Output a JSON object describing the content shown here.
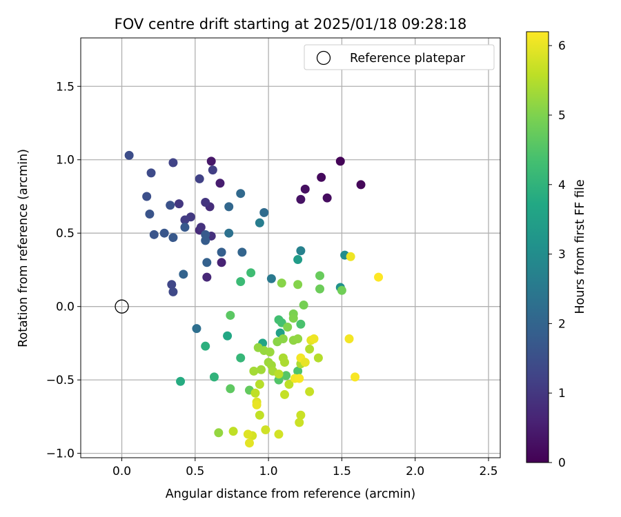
{
  "chart_data": {
    "type": "scatter",
    "title": "FOV centre drift starting at 2025/01/18 09:28:18",
    "xlabel": "Angular distance from reference (arcmin)",
    "ylabel": "Rotation from reference (arcmin)",
    "xlim": [
      -0.28,
      2.58
    ],
    "ylim": [
      -1.03,
      1.83
    ],
    "xticks": [
      0.0,
      0.5,
      1.0,
      1.5,
      2.0,
      2.5
    ],
    "yticks": [
      -1.0,
      -0.5,
      0.0,
      0.5,
      1.0,
      1.5
    ],
    "xtick_labels": [
      "0.0",
      "0.5",
      "1.0",
      "1.5",
      "2.0",
      "2.5"
    ],
    "ytick_labels": [
      "−1.0",
      "−0.5",
      "0.0",
      "0.5",
      "1.0",
      "1.5"
    ],
    "grid": true,
    "legend": {
      "placement": "top-right",
      "entries": [
        "Reference platepar"
      ]
    },
    "reference_point": {
      "x": 0.0,
      "y": 0.0,
      "marker": "open-circle"
    },
    "colorbar": {
      "label": "Hours from first FF file",
      "colormap": "viridis",
      "range": [
        0,
        6.2
      ],
      "ticks": [
        0,
        1,
        2,
        3,
        4,
        5,
        6
      ],
      "tick_labels": [
        "0",
        "1",
        "2",
        "3",
        "4",
        "5",
        "6"
      ]
    },
    "series": [
      {
        "color_by": "hours",
        "points": [
          {
            "x": 1.49,
            "y": 0.99,
            "c": 0.05
          },
          {
            "x": 1.63,
            "y": 0.83,
            "c": 0.1
          },
          {
            "x": 1.36,
            "y": 0.88,
            "c": 0.15
          },
          {
            "x": 1.4,
            "y": 0.74,
            "c": 0.2
          },
          {
            "x": 1.25,
            "y": 0.8,
            "c": 0.25
          },
          {
            "x": 1.22,
            "y": 0.73,
            "c": 0.3
          },
          {
            "x": 0.61,
            "y": 0.99,
            "c": 0.4
          },
          {
            "x": 0.67,
            "y": 0.84,
            "c": 0.5
          },
          {
            "x": 0.68,
            "y": 0.3,
            "c": 0.6
          },
          {
            "x": 0.58,
            "y": 0.2,
            "c": 0.7
          },
          {
            "x": 0.53,
            "y": 0.52,
            "c": 0.75
          },
          {
            "x": 0.6,
            "y": 0.68,
            "c": 0.8
          },
          {
            "x": 0.61,
            "y": 0.48,
            "c": 0.85
          },
          {
            "x": 0.54,
            "y": 0.54,
            "c": 0.9
          },
          {
            "x": 0.57,
            "y": 0.71,
            "c": 0.95
          },
          {
            "x": 0.39,
            "y": 0.7,
            "c": 1.0
          },
          {
            "x": 0.47,
            "y": 0.61,
            "c": 1.05
          },
          {
            "x": 0.43,
            "y": 0.59,
            "c": 1.1
          },
          {
            "x": 0.62,
            "y": 0.93,
            "c": 1.15
          },
          {
            "x": 0.53,
            "y": 0.87,
            "c": 1.2
          },
          {
            "x": 0.35,
            "y": 0.98,
            "c": 1.25
          },
          {
            "x": 0.34,
            "y": 0.15,
            "c": 1.3
          },
          {
            "x": 0.35,
            "y": 0.1,
            "c": 1.35
          },
          {
            "x": 0.2,
            "y": 0.91,
            "c": 1.4
          },
          {
            "x": 0.05,
            "y": 1.03,
            "c": 1.45
          },
          {
            "x": 0.17,
            "y": 0.75,
            "c": 1.5
          },
          {
            "x": 0.33,
            "y": 0.69,
            "c": 1.55
          },
          {
            "x": 0.19,
            "y": 0.63,
            "c": 1.6
          },
          {
            "x": 0.22,
            "y": 0.49,
            "c": 1.62
          },
          {
            "x": 0.29,
            "y": 0.5,
            "c": 1.65
          },
          {
            "x": 0.35,
            "y": 0.47,
            "c": 1.7
          },
          {
            "x": 0.43,
            "y": 0.54,
            "c": 1.72
          },
          {
            "x": 0.57,
            "y": 0.49,
            "c": 1.75
          },
          {
            "x": 0.57,
            "y": 0.45,
            "c": 1.8
          },
          {
            "x": 0.68,
            "y": 0.37,
            "c": 1.85
          },
          {
            "x": 0.58,
            "y": 0.3,
            "c": 1.9
          },
          {
            "x": 0.42,
            "y": 0.22,
            "c": 1.95
          },
          {
            "x": 0.82,
            "y": 0.37,
            "c": 2.0
          },
          {
            "x": 0.73,
            "y": 0.68,
            "c": 2.05
          },
          {
            "x": 0.81,
            "y": 0.77,
            "c": 2.1
          },
          {
            "x": 0.97,
            "y": 0.64,
            "c": 2.15
          },
          {
            "x": 0.51,
            "y": -0.15,
            "c": 2.25
          },
          {
            "x": 0.73,
            "y": 0.5,
            "c": 2.3
          },
          {
            "x": 1.02,
            "y": 0.19,
            "c": 2.5
          },
          {
            "x": 0.94,
            "y": 0.57,
            "c": 2.6
          },
          {
            "x": 1.22,
            "y": 0.38,
            "c": 2.7
          },
          {
            "x": 1.52,
            "y": 0.35,
            "c": 3.0
          },
          {
            "x": 1.49,
            "y": 0.13,
            "c": 3.1
          },
          {
            "x": 1.2,
            "y": 0.32,
            "c": 3.4
          },
          {
            "x": 1.08,
            "y": -0.18,
            "c": 3.5
          },
          {
            "x": 0.96,
            "y": -0.25,
            "c": 3.6
          },
          {
            "x": 0.72,
            "y": -0.2,
            "c": 3.7
          },
          {
            "x": 0.4,
            "y": -0.51,
            "c": 3.8
          },
          {
            "x": 0.57,
            "y": -0.27,
            "c": 3.9
          },
          {
            "x": 0.63,
            "y": -0.48,
            "c": 4.0
          },
          {
            "x": 0.81,
            "y": -0.35,
            "c": 4.1
          },
          {
            "x": 0.81,
            "y": 0.17,
            "c": 4.2
          },
          {
            "x": 0.88,
            "y": 0.23,
            "c": 4.25
          },
          {
            "x": 1.07,
            "y": -0.09,
            "c": 4.3
          },
          {
            "x": 1.09,
            "y": -0.11,
            "c": 4.35
          },
          {
            "x": 1.22,
            "y": -0.12,
            "c": 4.4
          },
          {
            "x": 1.2,
            "y": -0.44,
            "c": 4.45
          },
          {
            "x": 1.07,
            "y": -0.5,
            "c": 4.5
          },
          {
            "x": 1.12,
            "y": -0.47,
            "c": 4.55
          },
          {
            "x": 0.74,
            "y": -0.06,
            "c": 4.6
          },
          {
            "x": 0.74,
            "y": -0.56,
            "c": 4.65
          },
          {
            "x": 0.87,
            "y": -0.57,
            "c": 4.7
          },
          {
            "x": 1.35,
            "y": 0.21,
            "c": 4.75
          },
          {
            "x": 1.35,
            "y": 0.12,
            "c": 4.8
          },
          {
            "x": 1.5,
            "y": 0.11,
            "c": 4.85
          },
          {
            "x": 1.24,
            "y": 0.01,
            "c": 4.9
          },
          {
            "x": 1.17,
            "y": -0.05,
            "c": 4.95
          },
          {
            "x": 1.17,
            "y": -0.08,
            "c": 5.0
          },
          {
            "x": 1.13,
            "y": -0.14,
            "c": 5.02
          },
          {
            "x": 1.2,
            "y": 0.15,
            "c": 5.05
          },
          {
            "x": 1.09,
            "y": 0.16,
            "c": 5.08
          },
          {
            "x": 1.06,
            "y": -0.24,
            "c": 5.1
          },
          {
            "x": 1.1,
            "y": -0.22,
            "c": 5.12
          },
          {
            "x": 1.17,
            "y": -0.23,
            "c": 5.15
          },
          {
            "x": 1.2,
            "y": -0.22,
            "c": 5.18
          },
          {
            "x": 0.93,
            "y": -0.28,
            "c": 5.2
          },
          {
            "x": 0.97,
            "y": -0.3,
            "c": 5.22
          },
          {
            "x": 1.01,
            "y": -0.31,
            "c": 5.25
          },
          {
            "x": 1.0,
            "y": -0.38,
            "c": 5.28
          },
          {
            "x": 1.02,
            "y": -0.4,
            "c": 5.3
          },
          {
            "x": 0.95,
            "y": -0.43,
            "c": 5.32
          },
          {
            "x": 0.9,
            "y": -0.44,
            "c": 5.35
          },
          {
            "x": 1.03,
            "y": -0.44,
            "c": 5.38
          },
          {
            "x": 1.1,
            "y": -0.35,
            "c": 5.4
          },
          {
            "x": 1.11,
            "y": -0.38,
            "c": 5.42
          },
          {
            "x": 1.22,
            "y": -0.39,
            "c": 5.45
          },
          {
            "x": 1.28,
            "y": -0.29,
            "c": 5.48
          },
          {
            "x": 1.34,
            "y": -0.35,
            "c": 5.5
          },
          {
            "x": 0.94,
            "y": -0.53,
            "c": 5.52
          },
          {
            "x": 1.07,
            "y": -0.46,
            "c": 5.55
          },
          {
            "x": 1.14,
            "y": -0.53,
            "c": 5.58
          },
          {
            "x": 0.91,
            "y": -0.59,
            "c": 5.6
          },
          {
            "x": 0.94,
            "y": -0.74,
            "c": 5.62
          },
          {
            "x": 1.11,
            "y": -0.6,
            "c": 5.65
          },
          {
            "x": 1.28,
            "y": -0.58,
            "c": 5.68
          },
          {
            "x": 1.22,
            "y": -0.74,
            "c": 5.7
          },
          {
            "x": 1.21,
            "y": -0.79,
            "c": 5.72
          },
          {
            "x": 0.98,
            "y": -0.84,
            "c": 5.75
          },
          {
            "x": 1.07,
            "y": -0.87,
            "c": 5.78
          },
          {
            "x": 0.89,
            "y": -0.88,
            "c": 5.8
          },
          {
            "x": 0.66,
            "y": -0.86,
            "c": 5.2
          },
          {
            "x": 0.76,
            "y": -0.85,
            "c": 5.6
          },
          {
            "x": 0.86,
            "y": -0.87,
            "c": 5.9
          },
          {
            "x": 0.87,
            "y": -0.93,
            "c": 5.95
          },
          {
            "x": 0.92,
            "y": -0.65,
            "c": 5.9
          },
          {
            "x": 0.92,
            "y": -0.67,
            "c": 6.0
          },
          {
            "x": 1.18,
            "y": -0.49,
            "c": 6.1
          },
          {
            "x": 1.21,
            "y": -0.49,
            "c": 6.15
          },
          {
            "x": 1.22,
            "y": -0.35,
            "c": 6.1
          },
          {
            "x": 1.25,
            "y": -0.38,
            "c": 6.0
          },
          {
            "x": 1.29,
            "y": -0.23,
            "c": 5.95
          },
          {
            "x": 1.31,
            "y": -0.22,
            "c": 6.05
          },
          {
            "x": 1.55,
            "y": -0.22,
            "c": 6.1
          },
          {
            "x": 1.59,
            "y": -0.48,
            "c": 6.15
          },
          {
            "x": 1.56,
            "y": 0.34,
            "c": 6.05
          },
          {
            "x": 1.75,
            "y": 0.2,
            "c": 6.2
          }
        ]
      }
    ]
  }
}
